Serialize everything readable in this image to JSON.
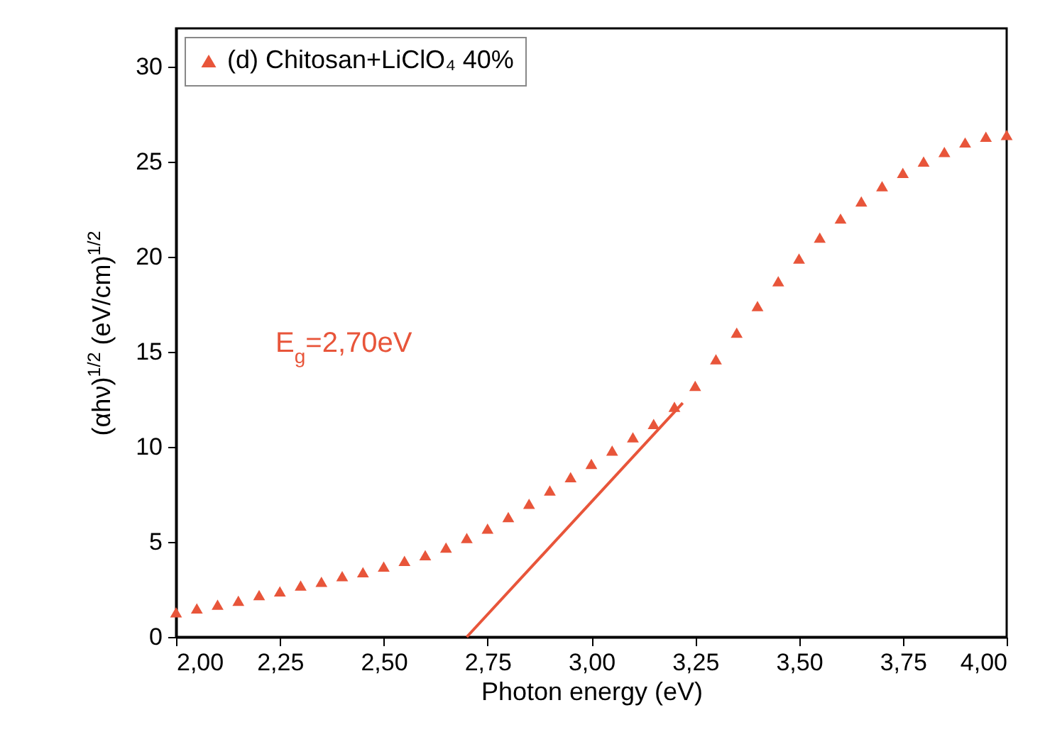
{
  "chart_data": {
    "type": "scatter",
    "xlabel": "Photon energy (eV)",
    "ylabel": "(αhν)$^{1/2}$ (eV/cm)$^{1/2}$",
    "annotations": [
      "E$_{g}$=2,70eV"
    ],
    "legend": "top left",
    "grid": false,
    "xlim": [
      2,
      4
    ],
    "ylim": [
      0,
      32
    ],
    "xticks": [
      {
        "value": 2,
        "label": "2,00"
      },
      {
        "value": 2.25,
        "label": "2,25"
      },
      {
        "value": 2.5,
        "label": "2,50"
      },
      {
        "value": 2.75,
        "label": "2,75"
      },
      {
        "value": 3,
        "label": "3,00"
      },
      {
        "value": 3.25,
        "label": "3,25"
      },
      {
        "value": 3.5,
        "label": "3,50"
      },
      {
        "value": 3.75,
        "label": "3,75"
      },
      {
        "value": 4,
        "label": "4,00"
      }
    ],
    "yticks": [
      0,
      5,
      10,
      15,
      20,
      25,
      30
    ],
    "series": [
      {
        "name": "(d) Chitosan+LiClO₄ 40%",
        "color": "#e8553a",
        "marker": "triangle",
        "x": [
          2.0,
          2.05,
          2.1,
          2.15,
          2.2,
          2.25,
          2.3,
          2.35,
          2.4,
          2.45,
          2.5,
          2.55,
          2.6,
          2.65,
          2.7,
          2.75,
          2.8,
          2.85,
          2.9,
          2.95,
          3.0,
          3.05,
          3.1,
          3.15,
          3.2,
          3.25,
          3.3,
          3.35,
          3.4,
          3.45,
          3.5,
          3.55,
          3.6,
          3.65,
          3.7,
          3.75,
          3.8,
          3.85,
          3.9,
          3.95,
          4.0
        ],
        "values": [
          1.3,
          1.5,
          1.7,
          1.9,
          2.2,
          2.4,
          2.7,
          2.9,
          3.2,
          3.4,
          3.7,
          4.0,
          4.3,
          4.7,
          5.2,
          5.7,
          6.3,
          7.0,
          7.7,
          8.4,
          9.1,
          9.8,
          10.5,
          11.2,
          12.1,
          13.2,
          14.6,
          16.0,
          17.4,
          18.7,
          19.9,
          21.0,
          22.0,
          22.9,
          23.7,
          24.4,
          25.0,
          25.5,
          26.0,
          26.3,
          26.4
        ]
      },
      {
        "type": "line",
        "color": "#e8553a",
        "x": [
          2.7,
          3.22
        ],
        "values": [
          0,
          12.3
        ]
      }
    ]
  }
}
